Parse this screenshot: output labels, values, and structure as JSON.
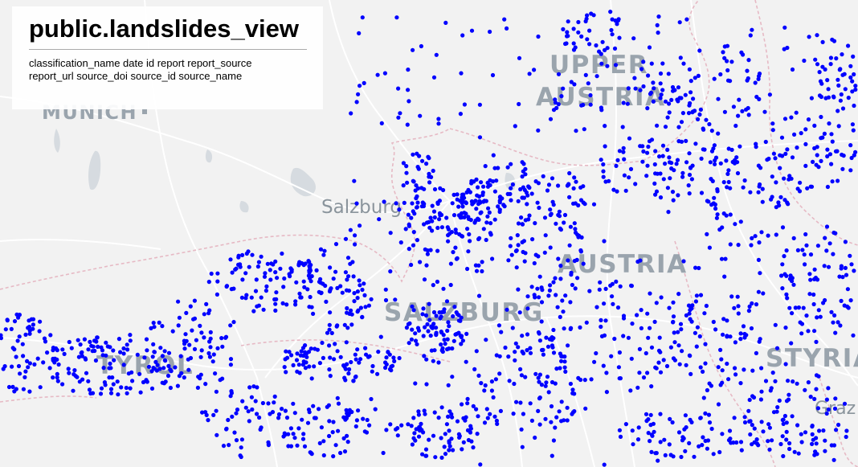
{
  "panel": {
    "title": "public.landslides_view",
    "fields": "classification_name date id report report_source report_url source_doi source_id source_name"
  },
  "map": {
    "labels": {
      "munich": "MUNICH",
      "upper": "UPPER",
      "austria_region": "AUSTRIA",
      "salzburg_city": "Salzburg",
      "austria_country": "AUSTRIA",
      "salzburg_state": "SALZBURG",
      "tyrol": "TYROL",
      "styria": "STYRIA",
      "graz": "Graz"
    },
    "colors": {
      "point": "#0000ff",
      "background": "#f2f2f2",
      "roads": "#ffffff",
      "water": "#d6dbe0",
      "borders": "#e6b9c4",
      "labels": "#9aa4ad"
    },
    "landslide_point_count": 2200
  }
}
